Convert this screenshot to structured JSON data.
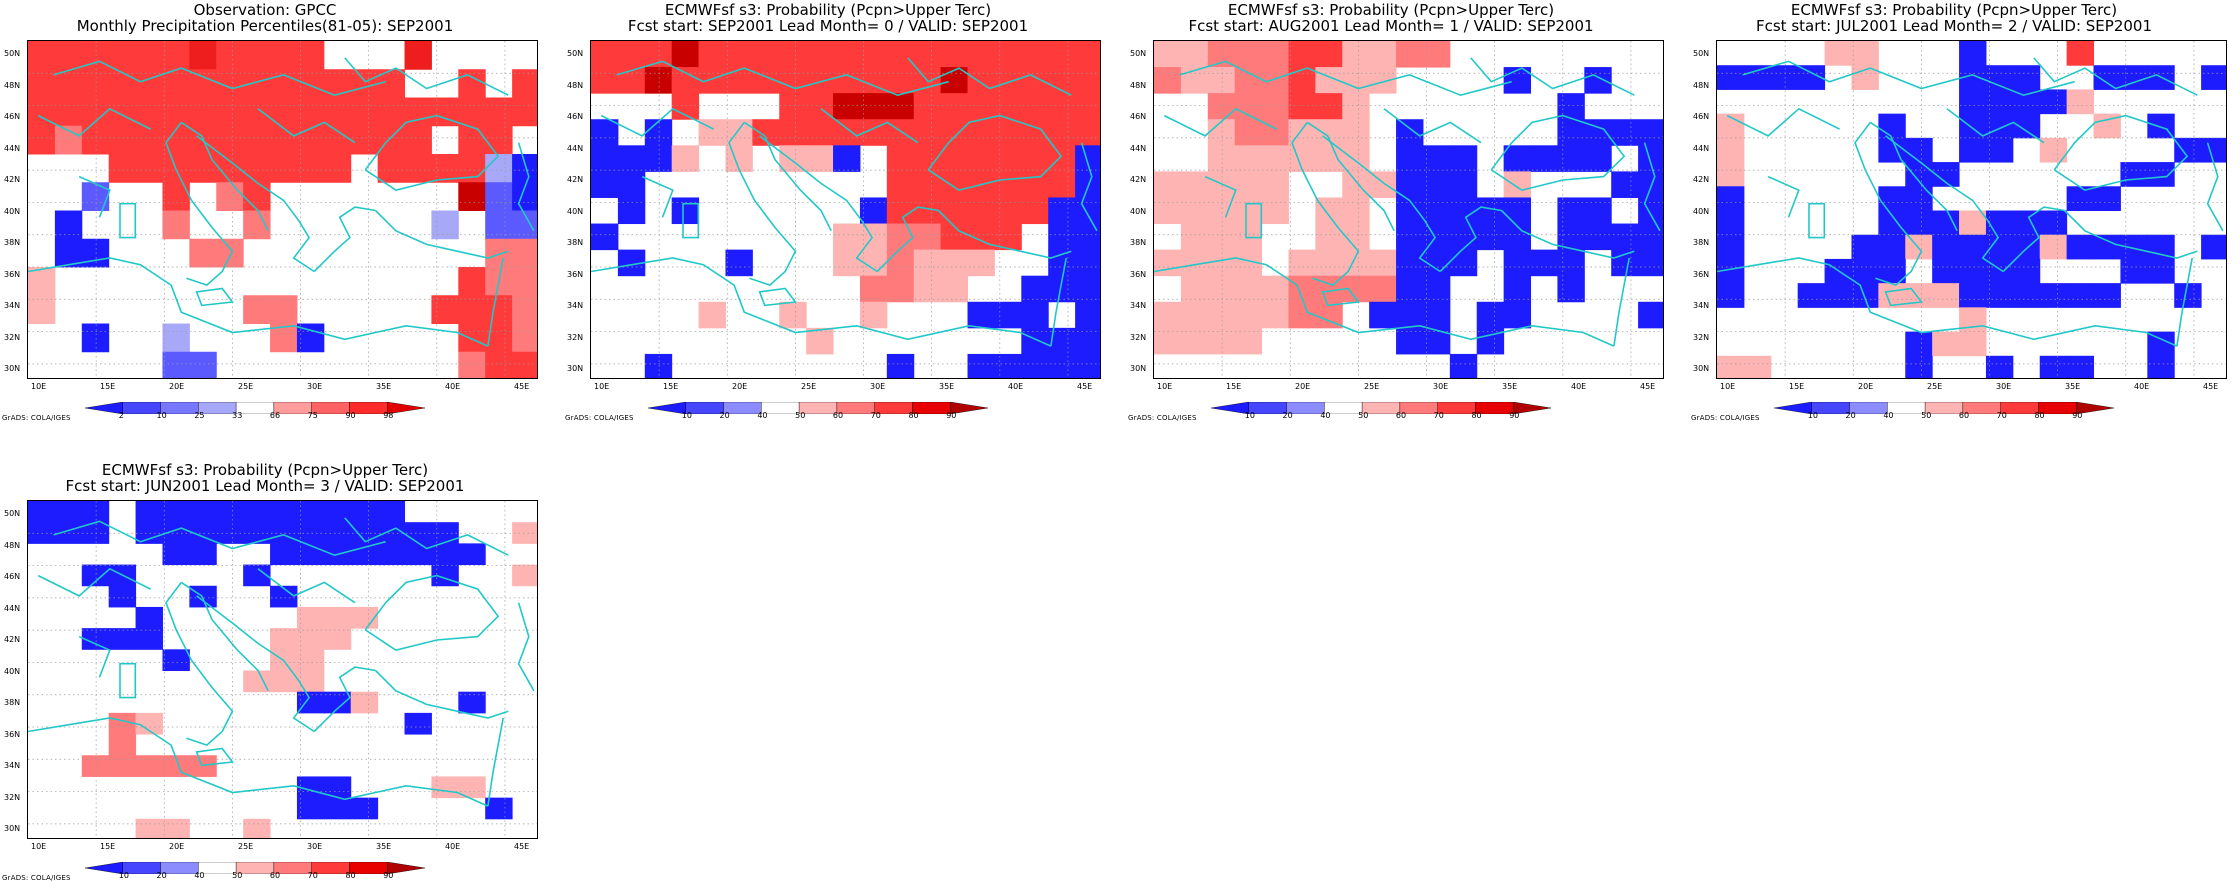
{
  "labels": {
    "lat": [
      "50N",
      "48N",
      "46N",
      "44N",
      "42N",
      "40N",
      "38N",
      "36N",
      "34N",
      "32N",
      "30N"
    ],
    "lon": [
      "10E",
      "15E",
      "20E",
      "25E",
      "30E",
      "35E",
      "40E",
      "45E"
    ],
    "credit": "GrADS: COLA/IGES"
  },
  "panels": [
    {
      "title_line1": "Observation: GPCC",
      "title_line2": "Monthly Precipitation Percentiles(81-05): SEP2001",
      "colorbar": {
        "ticks": [
          "2",
          "10",
          "25",
          "33",
          "66",
          "75",
          "90",
          "98"
        ],
        "colors": [
          "#1c1cff",
          "#4646ff",
          "#7878ff",
          "#a8a8f8",
          "#ffffff",
          "#ff9c9c",
          "#ff6262",
          "#ff2a2a",
          "#e00000"
        ]
      },
      "grid": [
        "SSSSSSHSSSS...H....",
        "SSSSSSSSSSSSSS..S.S",
        "SSSSSSSSSSSSSSSSSSS",
        "SRSSSSSSSSSSSSS.SS.",
        "...SSSSSSSSS.SSSSLB",
        "..M..S.RS.......DMB",
        ".B...R..R......L.MM",
        ".BB...RR.........RR",
        "P...............SRR",
        "P.......RR.....SSSR",
        "..B..L...RB.....SSR",
        ".....MM.........RSS"
      ]
    },
    {
      "title_line1": "ECMWFsf s3: Probability (Pcpn>Upper Terc)",
      "title_line2": "Fcst start: SEP2001   Lead Month= 0 / VALID: SEP2001",
      "colorbar": {
        "ticks": [
          "10",
          "20",
          "40",
          "50",
          "60",
          "70",
          "80",
          "90"
        ],
        "colors": [
          "#1c1cff",
          "#4646ff",
          "#8c8cff",
          "#ffffff",
          "#ffb4b4",
          "#ff7a7a",
          "#ff3a3a",
          "#e80000",
          "#b00000"
        ]
      },
      "grid": [
        "SSSDSSSSSSSSSSSSSSS",
        "SSDSSSSSSSSSSDSSSSS",
        "...S...SSDDDSSSSSSS",
        "B.B.PPSSSSSSSSSSSSS",
        "BBBP.P.PPB.SSSSSSSB",
        "BB.........SSSSSSSB",
        ".B.B......BSSSSSSBB",
        "B........PPRRSSS.BB",
        ".B...B...PPRPPP..BB",
        "..........RRPP..BBB",
        "....P..P..P...BBB.B",
        "........P.......BBB",
        "..B........B..BBBBB"
      ]
    },
    {
      "title_line1": "ECMWFsf s3: Probability (Pcpn>Upper Terc)",
      "title_line2": "Fcst start: AUG2001   Lead Month= 1 / VALID: SEP2001",
      "colorbar": {
        "ticks": [
          "10",
          "20",
          "40",
          "50",
          "60",
          "70",
          "80",
          "90"
        ],
        "colors": [
          "#1c1cff",
          "#4646ff",
          "#8c8cff",
          "#ffffff",
          "#ffb4b4",
          "#ff7a7a",
          "#ff3a3a",
          "#e80000",
          "#b00000"
        ]
      },
      "grid": [
        "PPRRRSSPPRR........",
        "RPPRRSPPP....B..B..",
        "..RRRSSP.......B...",
        "..PRRPPP.B.....BBBB",
        "..PPPPPP.BBB.BBBB.B",
        "PPPPP..PPBBB.P...BB",
        "PPPPP.PP.BBBBB.BB.B",
        ".PPP..PP.BBBBB.BBBB",
        "PPPP.PPPPBBB.BBB.BB",
        ".PPPPRRRRBB..B.B...",
        "PPPPPRR.BBB.BB....B",
        "PPPP.....BB.B......",
        "...........B......."
      ]
    },
    {
      "title_line1": "ECMWFsf s3: Probability (Pcpn>Upper Terc)",
      "title_line2": "Fcst start: JUL2001   Lead Month= 2 / VALID: SEP2001",
      "colorbar": {
        "ticks": [
          "10",
          "20",
          "40",
          "50",
          "60",
          "70",
          "80",
          "90"
        ],
        "colors": [
          "#1c1cff",
          "#4646ff",
          "#8c8cff",
          "#ffffff",
          "#ffb4b4",
          "#ff7a7a",
          "#ff3a3a",
          "#e80000",
          "#b00000"
        ]
      },
      "grid": [
        "....PP...B...S.....",
        "BBBB.P...BBB..BBB.B",
        ".........BBBBP.....",
        "P.....B..BBB..P.B..",
        "P.....BB.BB.P....BB",
        "P......BB......BB..",
        "B.....BB.....BB....",
        "B.....BBBPBBB......",
        "B....BBPBBBBPBBBB.B",
        "B...BBB.BBBB...BB..",
        "B..BBBPPPBBBBBB..B.",
        ".........P.........",
        ".......BPP......B..",
        "PP.....B..B.BB..B.."
      ]
    },
    {
      "title_line1": "ECMWFsf s3: Probability (Pcpn>Upper Terc)",
      "title_line2": "Fcst start: JUN2001   Lead Month= 3 / VALID: SEP2001",
      "colorbar": {
        "ticks": [
          "10",
          "20",
          "40",
          "50",
          "60",
          "70",
          "80",
          "90"
        ],
        "colors": [
          "#1c1cff",
          "#4646ff",
          "#8c8cff",
          "#ffffff",
          "#ffb4b4",
          "#ff7a7a",
          "#ff3a3a",
          "#e80000",
          "#b00000"
        ]
      },
      "grid": [
        "BBB.BBBBBBBBBB.....",
        "BBB.BBBBBBBBBBBB..P",
        ".....BB..BBBBBBBB..",
        "..BB....B......B..P",
        "...B..B..B.........",
        "....B.....PPP......",
        "..BBB....PPP.......",
        ".....B...PP........",
        "........PPP........",
        "..........BBP...B..",
        "...RP.........B....",
        "...R...............",
        "..RRRRR............",
        "..........BB...PP..",
        "..........BBB....B.",
        "....PP..P.........."
      ]
    }
  ]
}
